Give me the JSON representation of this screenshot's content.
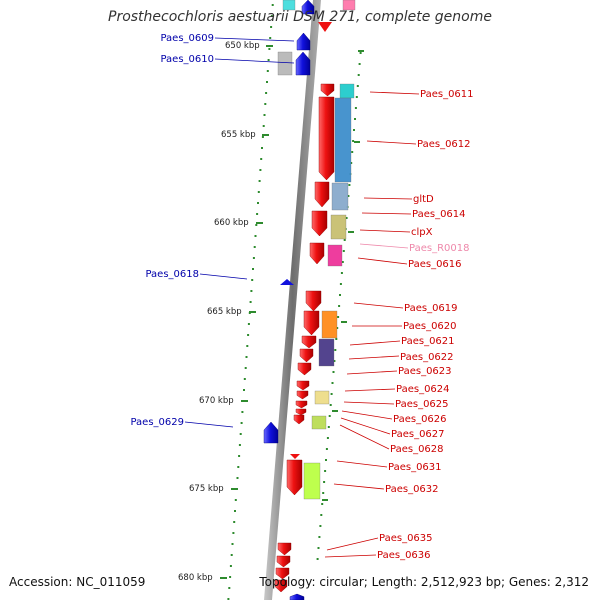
{
  "header": {
    "title": "Prosthecochloris aestuarii DSM 271, complete genome"
  },
  "footer": {
    "accession": "Accession: NC_011059",
    "info": "Topology: circular; Length: 2,512,923 bp; Genes: 2,312"
  },
  "colors": {
    "backbone": "#8a8a8a",
    "forward_gene": "#ee1111",
    "reverse_gene": "#1111dd",
    "tick": "#2e8b2e",
    "label_forward": "#cc0000",
    "label_reverse": "#0000aa",
    "label_rna": "#ee88aa"
  },
  "scale": {
    "ticks": [
      {
        "label": "650 kbp"
      },
      {
        "label": "655 kbp"
      },
      {
        "label": "660 kbp"
      },
      {
        "label": "665 kbp"
      },
      {
        "label": "670 kbp"
      },
      {
        "label": "675 kbp"
      },
      {
        "label": "680 kbp"
      }
    ]
  },
  "labels": {
    "left": [
      {
        "text": "Paes_0609"
      },
      {
        "text": "Paes_0610"
      },
      {
        "text": "Paes_0618"
      },
      {
        "text": "Paes_0629"
      }
    ],
    "right": [
      {
        "text": "Paes_0611"
      },
      {
        "text": "Paes_0612"
      },
      {
        "text": "gltD"
      },
      {
        "text": "Paes_0614"
      },
      {
        "text": "clpX"
      },
      {
        "text": "Paes_R0018"
      },
      {
        "text": "Paes_0616"
      },
      {
        "text": "Paes_0619"
      },
      {
        "text": "Paes_0620"
      },
      {
        "text": "Paes_0621"
      },
      {
        "text": "Paes_0622"
      },
      {
        "text": "Paes_0623"
      },
      {
        "text": "Paes_0624"
      },
      {
        "text": "Paes_0625"
      },
      {
        "text": "Paes_0626"
      },
      {
        "text": "Paes_0627"
      },
      {
        "text": "Paes_0628"
      },
      {
        "text": "Paes_0631"
      },
      {
        "text": "Paes_0632"
      },
      {
        "text": "Paes_0635"
      },
      {
        "text": "Paes_0636"
      }
    ]
  }
}
